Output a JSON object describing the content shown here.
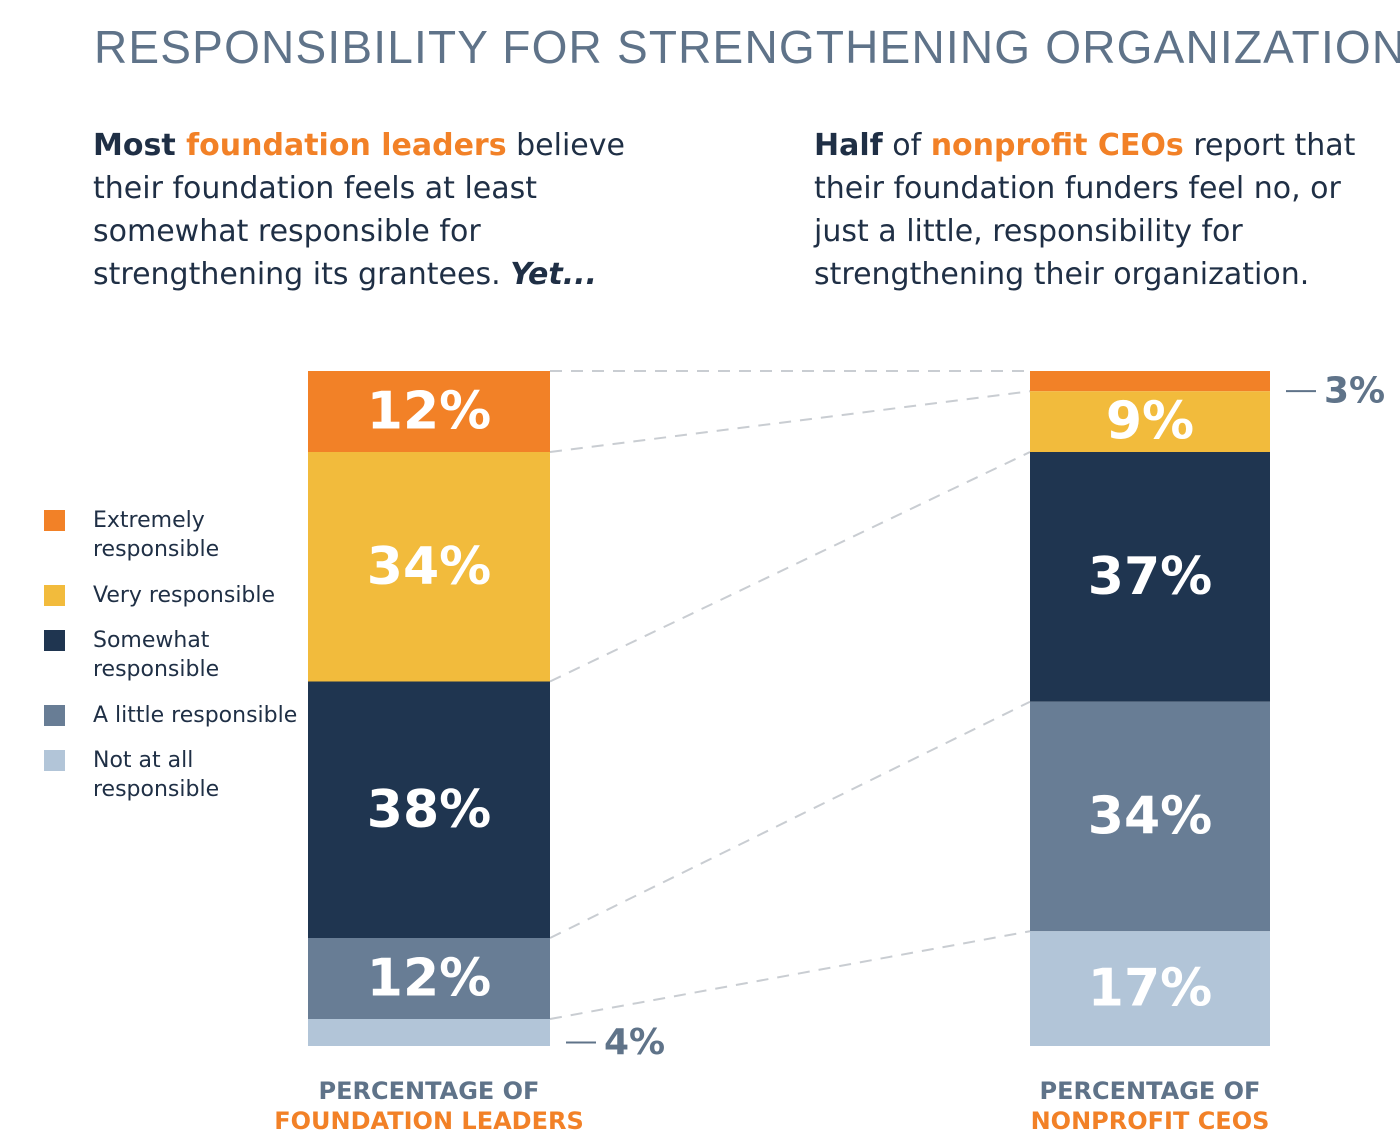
{
  "title": "RESPONSIBILITY FOR STRENGTHENING ORGANIZATIONS",
  "intro_left": {
    "p1": "Most ",
    "h1": "foundation leaders",
    "p2": " believe their foundation feels at least somewhat responsible for strengthening its grantees. ",
    "p3": "Yet..."
  },
  "intro_right": {
    "p1": "Half",
    "p2": " of ",
    "h1": "nonprofit CEOs",
    "p3": " report that their foundation funders feel no, or just a little, responsibility for strengthening their organization."
  },
  "legend": [
    {
      "label": "Extremely responsible",
      "color": "#f28127"
    },
    {
      "label": "Very responsible",
      "color": "#f2bb3c"
    },
    {
      "label": "Somewhat responsible",
      "color": "#1f3550"
    },
    {
      "label": "A little responsible",
      "color": "#687d95"
    },
    {
      "label": "Not at all responsible",
      "color": "#b2c5d8"
    }
  ],
  "chart_data": {
    "type": "bar",
    "stacked": true,
    "title": "RESPONSIBILITY FOR STRENGTHENING ORGANIZATIONS",
    "categories": [
      "PERCENTAGE OF FOUNDATION LEADERS",
      "PERCENTAGE OF NONPROFIT CEOS"
    ],
    "series": [
      {
        "name": "Extremely responsible",
        "color": "#f28127",
        "values": [
          12,
          3
        ],
        "labels": [
          "12%",
          "3%"
        ]
      },
      {
        "name": "Very responsible",
        "color": "#f2bb3c",
        "values": [
          34,
          9
        ],
        "labels": [
          "34%",
          "9%"
        ]
      },
      {
        "name": "Somewhat responsible",
        "color": "#1f3550",
        "values": [
          38,
          37
        ],
        "labels": [
          "38%",
          "37%"
        ]
      },
      {
        "name": "A little responsible",
        "color": "#687d95",
        "values": [
          12,
          34
        ],
        "labels": [
          "12%",
          "34%"
        ]
      },
      {
        "name": "Not at all responsible",
        "color": "#b2c5d8",
        "values": [
          4,
          17
        ],
        "labels": [
          "4%",
          "17%"
        ]
      }
    ],
    "ylim": [
      0,
      100
    ],
    "grid": false,
    "legend": "left"
  },
  "captions": [
    {
      "line1": "PERCENTAGE OF",
      "line2": "FOUNDATION LEADERS"
    },
    {
      "line1": "PERCENTAGE OF",
      "line2": "NONPROFIT CEOS"
    }
  ]
}
